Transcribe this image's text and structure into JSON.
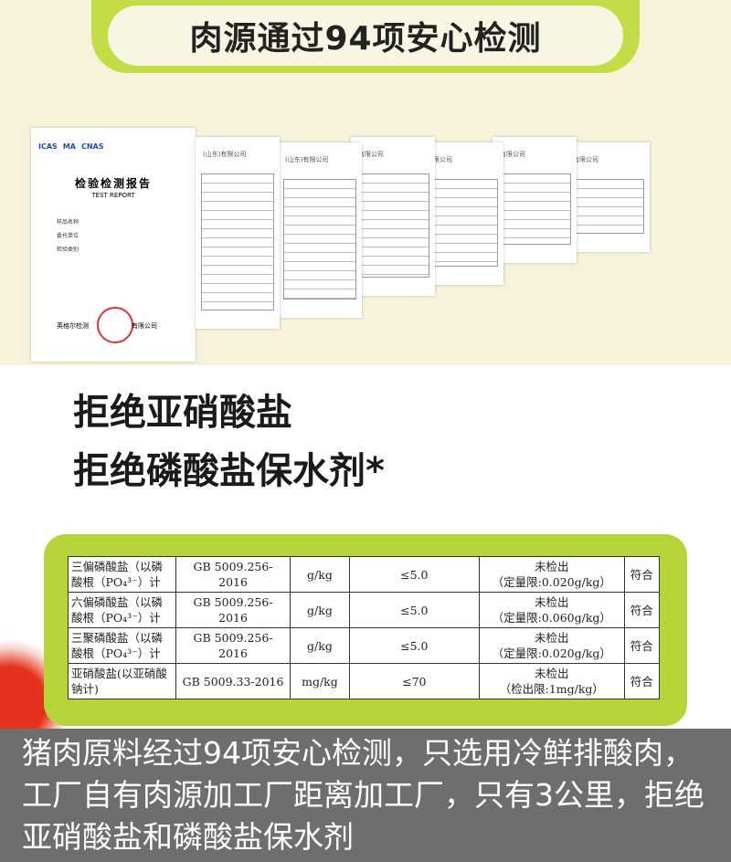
{
  "header": {
    "title": "肉源通过94项安心检测"
  },
  "reports": {
    "cover": {
      "logos": [
        "ICAS",
        "MA",
        "CNAS"
      ],
      "title": "检验检测报告",
      "subtitle": "TEST REPORT",
      "fields": [
        "样品名称",
        "委托单位",
        "检验类别"
      ],
      "lab": "英格尔检测",
      "company": "有限公司"
    },
    "pages": [
      "(山东)有限公司",
      "(山东)有限公司",
      "有限公司",
      "有限公司",
      "有限公司",
      "有限公司"
    ]
  },
  "headlines": [
    "拒绝亚硝酸盐",
    "拒绝磷酸盐保水剂*"
  ],
  "table": {
    "rows": [
      [
        [
          "三偏磷酸盐（以磷",
          "酸根（PO₄³⁻）计"
        ],
        "GB 5009.256-2016",
        "g/kg",
        "≤5.0",
        [
          "未检出",
          "（定量限:0.020g/kg）"
        ],
        "符合"
      ],
      [
        [
          "六偏磷酸盐（以磷",
          "酸根（PO₄³⁻）计"
        ],
        "GB 5009.256-2016",
        "g/kg",
        "≤5.0",
        [
          "未检出",
          "（定量限:0.060g/kg）"
        ],
        "符合"
      ],
      [
        [
          "三聚磷酸盐（以磷",
          "酸根（PO₄³⁻）计"
        ],
        "GB 5009.256-2016",
        "g/kg",
        "≤5.0",
        [
          "未检出",
          "（定量限:0.020g/kg）"
        ],
        "符合"
      ],
      [
        [
          "亚硝酸盐(以亚硝酸",
          "钠计)"
        ],
        "GB 5009.33-2016",
        "mg/kg",
        "≤70",
        [
          "未检出",
          "（检出限:1mg/kg）"
        ],
        "符合"
      ]
    ]
  },
  "caption": "猪肉原料经过94项安心检测，只选用冷鲜排酸肉，工厂自有肉源加工厂距离加工厂，只有3公里，拒绝亚硝酸盐和磷酸盐保水剂"
}
